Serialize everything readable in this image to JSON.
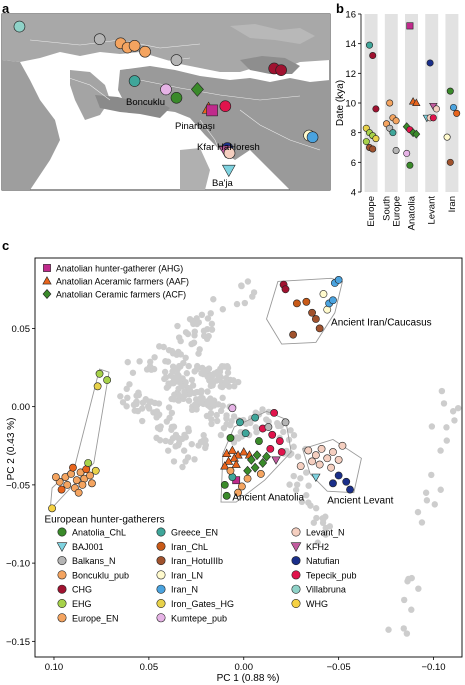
{
  "panels": {
    "a": "a",
    "b": "b",
    "c": "c"
  },
  "map": {
    "sites": [
      {
        "name": "Boncuklu",
        "lon": 32.6,
        "lat": 37.7
      },
      {
        "name": "Pinarbaşı",
        "lon": 33.1,
        "lat": 37.5
      },
      {
        "name": "Kfar HaHoresh",
        "lon": 35.3,
        "lat": 32.7
      },
      {
        "name": "Ba'ja",
        "lon": 35.5,
        "lat": 30.4
      }
    ],
    "markers": [
      {
        "lon": 5.5,
        "lat": 47.5,
        "color": "#8fd2c8",
        "shape": "circle"
      },
      {
        "lon": 17.0,
        "lat": 46.0,
        "color": "#b5b5b5",
        "shape": "circle"
      },
      {
        "lon": 20.0,
        "lat": 45.5,
        "color": "#f4a460",
        "shape": "circle"
      },
      {
        "lon": 21.0,
        "lat": 45.0,
        "color": "#f4a460",
        "shape": "circle"
      },
      {
        "lon": 22.0,
        "lat": 45.2,
        "color": "#f4a460",
        "shape": "circle"
      },
      {
        "lon": 23.5,
        "lat": 44.5,
        "color": "#f4a460",
        "shape": "circle"
      },
      {
        "lon": 28.0,
        "lat": 43.5,
        "color": "#b5b5b5",
        "shape": "circle"
      },
      {
        "lon": 22.0,
        "lat": 41.0,
        "color": "#3fa69a",
        "shape": "circle"
      },
      {
        "lon": 26.5,
        "lat": 40.0,
        "color": "#e6b3e6",
        "shape": "circle"
      },
      {
        "lon": 31.0,
        "lat": 40.0,
        "color": "#3a8a2a",
        "shape": "diamond"
      },
      {
        "lon": 28.0,
        "lat": 39.0,
        "color": "#3a8a2a",
        "shape": "circle"
      },
      {
        "lon": 32.6,
        "lat": 37.7,
        "color": "#e8641c",
        "shape": "triangle"
      },
      {
        "lon": 33.1,
        "lat": 37.5,
        "color": "#c02a8c",
        "shape": "square"
      },
      {
        "lon": 35.0,
        "lat": 38.0,
        "color": "#e0144c",
        "shape": "circle"
      },
      {
        "lon": 42.0,
        "lat": 42.5,
        "color": "#a01230",
        "shape": "circle"
      },
      {
        "lon": 43.0,
        "lat": 42.3,
        "color": "#a01230",
        "shape": "circle"
      },
      {
        "lon": 35.3,
        "lat": 33.0,
        "color": "#1a2f8a",
        "shape": "circle"
      },
      {
        "lon": 35.0,
        "lat": 32.7,
        "color": "#c25c9f",
        "shape": "triangle-down"
      },
      {
        "lon": 35.6,
        "lat": 32.4,
        "color": "#f5cfc0",
        "shape": "circle"
      },
      {
        "lon": 35.5,
        "lat": 30.4,
        "color": "#7fd3e0",
        "shape": "triangle-down"
      },
      {
        "lon": 47.0,
        "lat": 34.5,
        "color": "#fffacd",
        "shape": "circle"
      },
      {
        "lon": 47.5,
        "lat": 34.3,
        "color": "#4aa3df",
        "shape": "circle"
      }
    ]
  },
  "chart_b": {
    "type": "scatter",
    "ylabel": "Date (kya)",
    "ylim": [
      4,
      16
    ],
    "yticks": [
      "4",
      "6",
      "8",
      "10",
      "12",
      "14",
      "16"
    ],
    "groups": [
      "Europe",
      "South Europe",
      "Anatolia",
      "Levant",
      "Iran"
    ],
    "points": [
      {
        "g": 0,
        "y": 13.9,
        "c": "#3fa69a"
      },
      {
        "g": 0,
        "y": 13.2,
        "c": "#a01230"
      },
      {
        "g": 0,
        "y": 9.6,
        "c": "#a01230"
      },
      {
        "g": 0,
        "y": 8.3,
        "c": "#e8d24a"
      },
      {
        "g": 0,
        "y": 8.0,
        "c": "#a6d24a"
      },
      {
        "g": 0,
        "y": 7.8,
        "c": "#a6d24a"
      },
      {
        "g": 0,
        "y": 7.6,
        "c": "#e8d24a"
      },
      {
        "g": 0,
        "y": 7.4,
        "c": "#a6d24a"
      },
      {
        "g": 0,
        "y": 7.0,
        "c": "#a0522d"
      },
      {
        "g": 0,
        "y": 6.9,
        "c": "#a0522d"
      },
      {
        "g": 1,
        "y": 10.0,
        "c": "#f4a460"
      },
      {
        "g": 1,
        "y": 9.0,
        "c": "#f4a460"
      },
      {
        "g": 1,
        "y": 8.8,
        "c": "#f4a460"
      },
      {
        "g": 1,
        "y": 8.6,
        "c": "#f4a460"
      },
      {
        "g": 1,
        "y": 8.3,
        "c": "#b5b5b5"
      },
      {
        "g": 1,
        "y": 8.0,
        "c": "#3fa69a"
      },
      {
        "g": 1,
        "y": 6.8,
        "c": "#b5b5b5"
      },
      {
        "g": 2,
        "y": 15.2,
        "c": "#c02a8c",
        "s": "square"
      },
      {
        "g": 2,
        "y": 10.1,
        "c": "#e8641c",
        "s": "triangle"
      },
      {
        "g": 2,
        "y": 10.0,
        "c": "#e8641c",
        "s": "triangle"
      },
      {
        "g": 2,
        "y": 8.4,
        "c": "#3a8a2a",
        "s": "diamond"
      },
      {
        "g": 2,
        "y": 8.2,
        "c": "#e0144c"
      },
      {
        "g": 2,
        "y": 8.0,
        "c": "#3a8a2a",
        "s": "diamond"
      },
      {
        "g": 2,
        "y": 7.9,
        "c": "#3a8a2a",
        "s": "diamond"
      },
      {
        "g": 2,
        "y": 6.6,
        "c": "#e6b3e6"
      },
      {
        "g": 2,
        "y": 5.8,
        "c": "#3a8a2a"
      },
      {
        "g": 3,
        "y": 12.7,
        "c": "#1a2f8a"
      },
      {
        "g": 3,
        "y": 9.8,
        "c": "#c25c9f",
        "s": "triangle-down"
      },
      {
        "g": 3,
        "y": 9.6,
        "c": "#f5cfc0"
      },
      {
        "g": 3,
        "y": 9.0,
        "c": "#7fd3e0",
        "s": "triangle-down"
      },
      {
        "g": 3,
        "y": 9.0,
        "c": "#f5cfc0"
      },
      {
        "g": 3,
        "y": 9.0,
        "c": "#e0144c"
      },
      {
        "g": 4,
        "y": 10.8,
        "c": "#3a8a2a"
      },
      {
        "g": 4,
        "y": 9.7,
        "c": "#4aa3df"
      },
      {
        "g": 4,
        "y": 9.3,
        "c": "#e8641c"
      },
      {
        "g": 4,
        "y": 7.7,
        "c": "#fffacd"
      },
      {
        "g": 4,
        "y": 6.0,
        "c": "#a0522d"
      }
    ]
  },
  "chart_c": {
    "type": "scatter",
    "xlabel": "PC 1 (0.88 %)",
    "ylabel": "PC 2 (0.43 %)",
    "xlim": [
      0.11,
      -0.115
    ],
    "ylim": [
      -0.16,
      0.095
    ],
    "xticks": [
      {
        "v": 0.1,
        "t": "0.10"
      },
      {
        "v": 0.05,
        "t": "0.05"
      },
      {
        "v": 0.0,
        "t": "0.00"
      },
      {
        "v": -0.05,
        "t": "−0.05"
      },
      {
        "v": -0.1,
        "t": "−0.10"
      }
    ],
    "yticks": [
      {
        "v": 0.05,
        "t": "0.05"
      },
      {
        "v": 0.0,
        "t": "0.00"
      },
      {
        "v": -0.05,
        "t": "−0.05"
      },
      {
        "v": -0.1,
        "t": "−0.10"
      },
      {
        "v": -0.15,
        "t": "−0.15"
      }
    ],
    "cluster_labels": [
      {
        "text": "Ancient Iran/Caucasus",
        "x": -0.046,
        "y": 0.052
      },
      {
        "text": "European hunter-gatherers",
        "x": 0.105,
        "y": -0.074
      },
      {
        "text": "Ancient Anatolia",
        "x": 0.006,
        "y": -0.06
      },
      {
        "text": "Ancient Levant",
        "x": -0.044,
        "y": -0.062
      }
    ],
    "top_legend": [
      {
        "label": "Anatolian hunter-gatherer (AHG)",
        "c": "#c02a8c",
        "s": "square"
      },
      {
        "label": "Anatolian Aceramic farmers (AAF)",
        "c": "#e8641c",
        "s": "triangle"
      },
      {
        "label": "Anatolian Ceramic farmers (ACF)",
        "c": "#3a8a2a",
        "s": "diamond"
      }
    ],
    "legend": [
      {
        "label": "Anatolia_ChL",
        "c": "#3a8a2a",
        "s": "circle"
      },
      {
        "label": "BAJ001",
        "c": "#7fd3e0",
        "s": "triangle-down"
      },
      {
        "label": "Balkans_N",
        "c": "#b5b5b5",
        "s": "circle"
      },
      {
        "label": "Boncuklu_pub",
        "c": "#f4a460",
        "s": "circle"
      },
      {
        "label": "CHG",
        "c": "#a01230",
        "s": "circle"
      },
      {
        "label": "EHG",
        "c": "#a6d24a",
        "s": "circle"
      },
      {
        "label": "Europe_EN",
        "c": "#f4a460",
        "s": "circle"
      },
      {
        "label": "Greece_EN",
        "c": "#3fa69a",
        "s": "circle"
      },
      {
        "label": "Iran_ChL",
        "c": "#c85a18",
        "s": "circle"
      },
      {
        "label": "Iran_HotuIIIb",
        "c": "#a0522d",
        "s": "circle"
      },
      {
        "label": "Iran_LN",
        "c": "#fffacd",
        "s": "circle"
      },
      {
        "label": "Iran_N",
        "c": "#4aa3df",
        "s": "circle"
      },
      {
        "label": "Iron_Gates_HG",
        "c": "#e8d24a",
        "s": "circle"
      },
      {
        "label": "Kumtepe_pub",
        "c": "#e6b3e6",
        "s": "circle"
      },
      {
        "label": "Levant_N",
        "c": "#f5cfc0",
        "s": "circle"
      },
      {
        "label": "KFH2",
        "c": "#c25c9f",
        "s": "triangle-down"
      },
      {
        "label": "Natufian",
        "c": "#1a2f8a",
        "s": "circle"
      },
      {
        "label": "Tepecik_pub",
        "c": "#e0144c",
        "s": "circle"
      },
      {
        "label": "Villabruna",
        "c": "#8fd2c8",
        "s": "circle"
      },
      {
        "label": "WHG",
        "c": "#f5d142",
        "s": "circle"
      }
    ],
    "hulls": [
      {
        "name": "european-hg",
        "points": [
          [
            0.102,
            -0.066
          ],
          [
            0.079,
            -0.036
          ],
          [
            0.071,
            0.022
          ],
          [
            0.076,
            0.024
          ],
          [
            0.089,
            -0.038
          ],
          [
            0.101,
            -0.052
          ]
        ]
      },
      {
        "name": "ancient-anatolia",
        "points": [
          [
            0.012,
            -0.061
          ],
          [
            0.011,
            -0.03
          ],
          [
            0.005,
            -0.013
          ],
          [
            -0.012,
            -0.003
          ],
          [
            -0.022,
            -0.008
          ],
          [
            -0.025,
            -0.029
          ],
          [
            -0.011,
            -0.047
          ],
          [
            0.004,
            -0.061
          ]
        ]
      },
      {
        "name": "ancient-levant",
        "points": [
          [
            -0.035,
            -0.043
          ],
          [
            -0.031,
            -0.027
          ],
          [
            -0.047,
            -0.021
          ],
          [
            -0.062,
            -0.033
          ],
          [
            -0.058,
            -0.055
          ],
          [
            -0.044,
            -0.054
          ]
        ]
      },
      {
        "name": "ancient-iran",
        "points": [
          [
            -0.012,
            0.056
          ],
          [
            -0.018,
            0.08
          ],
          [
            -0.046,
            0.082
          ],
          [
            -0.052,
            0.08
          ],
          [
            -0.048,
            0.06
          ],
          [
            -0.038,
            0.041
          ],
          [
            -0.02,
            0.04
          ]
        ]
      }
    ],
    "points": [
      {
        "x": 0.097,
        "y": -0.048,
        "c": "#f4a460"
      },
      {
        "x": 0.094,
        "y": -0.045,
        "c": "#f4a460"
      },
      {
        "x": 0.091,
        "y": -0.043,
        "c": "#f4a460"
      },
      {
        "x": 0.088,
        "y": -0.047,
        "c": "#f4a460"
      },
      {
        "x": 0.086,
        "y": -0.042,
        "c": "#f4a460"
      },
      {
        "x": 0.084,
        "y": -0.046,
        "c": "#f4a460"
      },
      {
        "x": 0.093,
        "y": -0.05,
        "c": "#f4a460"
      },
      {
        "x": 0.089,
        "y": -0.052,
        "c": "#f4a460"
      },
      {
        "x": 0.085,
        "y": -0.05,
        "c": "#f4a460"
      },
      {
        "x": 0.081,
        "y": -0.044,
        "c": "#f4a460"
      },
      {
        "x": 0.083,
        "y": -0.04,
        "c": "#e8641c"
      },
      {
        "x": 0.09,
        "y": -0.039,
        "c": "#e8641c"
      },
      {
        "x": 0.096,
        "y": -0.053,
        "c": "#e8641c"
      },
      {
        "x": 0.08,
        "y": -0.049,
        "c": "#f4a460"
      },
      {
        "x": 0.087,
        "y": -0.055,
        "c": "#f4a460"
      },
      {
        "x": 0.078,
        "y": -0.041,
        "c": "#e8d24a"
      },
      {
        "x": 0.082,
        "y": -0.036,
        "c": "#a6d24a"
      },
      {
        "x": 0.076,
        "y": 0.021,
        "c": "#a6d24a"
      },
      {
        "x": 0.072,
        "y": 0.017,
        "c": "#a6d24a"
      },
      {
        "x": 0.077,
        "y": 0.013,
        "c": "#e8d24a"
      },
      {
        "x": 0.101,
        "y": -0.065,
        "c": "#f5d142"
      },
      {
        "x": 0.099,
        "y": -0.045,
        "c": "#f4a460"
      },
      {
        "x": 0.009,
        "y": -0.03,
        "c": "#e8641c",
        "s": "triangle"
      },
      {
        "x": 0.006,
        "y": -0.028,
        "c": "#e8641c",
        "s": "triangle"
      },
      {
        "x": 0.003,
        "y": -0.031,
        "c": "#e8641c",
        "s": "triangle"
      },
      {
        "x": 0.0,
        "y": -0.029,
        "c": "#e8641c",
        "s": "triangle"
      },
      {
        "x": -0.003,
        "y": -0.031,
        "c": "#e8641c",
        "s": "triangle"
      },
      {
        "x": 0.005,
        "y": -0.033,
        "c": "#e8641c",
        "s": "triangle"
      },
      {
        "x": 0.008,
        "y": -0.035,
        "c": "#e8641c",
        "s": "triangle"
      },
      {
        "x": 0.01,
        "y": -0.038,
        "c": "#e8641c",
        "s": "triangle"
      },
      {
        "x": 0.004,
        "y": -0.037,
        "c": "#e8641c",
        "s": "triangle"
      },
      {
        "x": -0.004,
        "y": -0.034,
        "c": "#3a8a2a",
        "s": "diamond"
      },
      {
        "x": -0.007,
        "y": -0.031,
        "c": "#3a8a2a",
        "s": "diamond"
      },
      {
        "x": -0.01,
        "y": -0.036,
        "c": "#3a8a2a",
        "s": "diamond"
      },
      {
        "x": -0.006,
        "y": -0.039,
        "c": "#3a8a2a",
        "s": "diamond"
      },
      {
        "x": -0.012,
        "y": -0.032,
        "c": "#3a8a2a",
        "s": "diamond"
      },
      {
        "x": -0.002,
        "y": -0.041,
        "c": "#3a8a2a",
        "s": "diamond"
      },
      {
        "x": 0.004,
        "y": -0.047,
        "c": "#c02a8c",
        "s": "square"
      },
      {
        "x": -0.017,
        "y": -0.034,
        "c": "#c25c9f",
        "s": "triangle-down"
      },
      {
        "x": -0.01,
        "y": -0.014,
        "c": "#e0144c"
      },
      {
        "x": -0.015,
        "y": -0.018,
        "c": "#e0144c"
      },
      {
        "x": -0.019,
        "y": -0.022,
        "c": "#e0144c"
      },
      {
        "x": -0.014,
        "y": -0.027,
        "c": "#e0144c"
      },
      {
        "x": -0.02,
        "y": -0.029,
        "c": "#e0144c"
      },
      {
        "x": 0.002,
        "y": -0.01,
        "c": "#3fa69a"
      },
      {
        "x": -0.006,
        "y": -0.007,
        "c": "#3fa69a"
      },
      {
        "x": -0.001,
        "y": -0.017,
        "c": "#3fa69a"
      },
      {
        "x": 0.007,
        "y": -0.02,
        "c": "#3a8a2a"
      },
      {
        "x": -0.008,
        "y": -0.022,
        "c": "#3a8a2a"
      },
      {
        "x": 0.006,
        "y": -0.045,
        "c": "#3fa69a"
      },
      {
        "x": 0.01,
        "y": -0.05,
        "c": "#3a8a2a"
      },
      {
        "x": 0.009,
        "y": -0.057,
        "c": "#3a8a2a"
      },
      {
        "x": 0.001,
        "y": -0.051,
        "c": "#f4a460"
      },
      {
        "x": -0.002,
        "y": -0.046,
        "c": "#f4a460"
      },
      {
        "x": 0.007,
        "y": -0.041,
        "c": "#f4a460"
      },
      {
        "x": -0.009,
        "y": -0.043,
        "c": "#f4a460"
      },
      {
        "x": 0.003,
        "y": -0.055,
        "c": "#f4a460"
      },
      {
        "x": -0.013,
        "y": -0.013,
        "c": "#b5b5b5"
      },
      {
        "x": -0.022,
        "y": -0.01,
        "c": "#b5b5b5"
      },
      {
        "x": 0.006,
        "y": -0.001,
        "c": "#e6b3e6"
      },
      {
        "x": -0.016,
        "y": -0.004,
        "c": "#e0144c"
      },
      {
        "x": -0.034,
        "y": -0.028,
        "c": "#f5cfc0"
      },
      {
        "x": -0.038,
        "y": -0.031,
        "c": "#f5cfc0"
      },
      {
        "x": -0.041,
        "y": -0.027,
        "c": "#f5cfc0"
      },
      {
        "x": -0.044,
        "y": -0.033,
        "c": "#f5cfc0"
      },
      {
        "x": -0.047,
        "y": -0.029,
        "c": "#f5cfc0"
      },
      {
        "x": -0.05,
        "y": -0.034,
        "c": "#f5cfc0"
      },
      {
        "x": -0.04,
        "y": -0.037,
        "c": "#f5cfc0"
      },
      {
        "x": -0.036,
        "y": -0.035,
        "c": "#f5cfc0"
      },
      {
        "x": -0.052,
        "y": -0.025,
        "c": "#f5cfc0"
      },
      {
        "x": -0.046,
        "y": -0.039,
        "c": "#f5cfc0"
      },
      {
        "x": -0.03,
        "y": -0.038,
        "c": "#f5cfc0"
      },
      {
        "x": -0.038,
        "y": -0.045,
        "c": "#7fd3e0",
        "s": "triangle-down"
      },
      {
        "x": -0.05,
        "y": -0.044,
        "c": "#1a2f8a"
      },
      {
        "x": -0.054,
        "y": -0.048,
        "c": "#1a2f8a"
      },
      {
        "x": -0.056,
        "y": -0.053,
        "c": "#1a2f8a"
      },
      {
        "x": -0.047,
        "y": -0.049,
        "c": "#1a2f8a"
      },
      {
        "x": -0.021,
        "y": 0.078,
        "c": "#a01230"
      },
      {
        "x": -0.022,
        "y": 0.075,
        "c": "#a01230"
      },
      {
        "x": -0.028,
        "y": 0.066,
        "c": "#c85a18"
      },
      {
        "x": -0.036,
        "y": 0.06,
        "c": "#a0522d"
      },
      {
        "x": -0.038,
        "y": 0.056,
        "c": "#a0522d"
      },
      {
        "x": -0.04,
        "y": 0.05,
        "c": "#a0522d"
      },
      {
        "x": -0.044,
        "y": 0.062,
        "c": "#fffacd"
      },
      {
        "x": -0.045,
        "y": 0.066,
        "c": "#4aa3df"
      },
      {
        "x": -0.047,
        "y": 0.068,
        "c": "#4aa3df"
      },
      {
        "x": -0.042,
        "y": 0.072,
        "c": "#fffacd"
      },
      {
        "x": -0.048,
        "y": 0.079,
        "c": "#4aa3df"
      },
      {
        "x": -0.033,
        "y": 0.067,
        "c": "#c85a18"
      },
      {
        "x": -0.026,
        "y": 0.046,
        "c": "#a0522d"
      },
      {
        "x": -0.05,
        "y": 0.081,
        "c": "#4aa3df"
      }
    ]
  }
}
